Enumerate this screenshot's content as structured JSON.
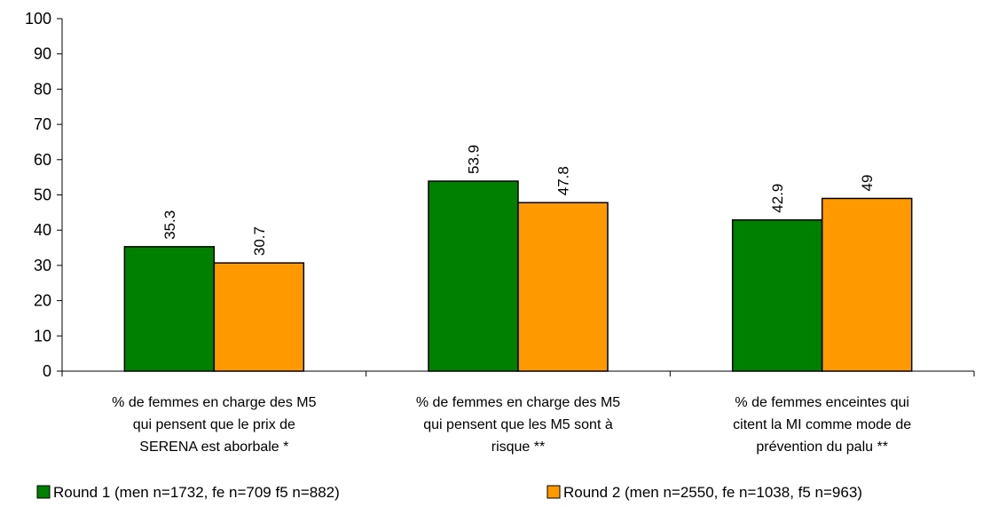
{
  "chart_data": {
    "type": "bar",
    "title": "",
    "xlabel": "",
    "ylabel": "",
    "ylim": [
      0,
      100
    ],
    "yticks": [
      0,
      10,
      20,
      30,
      40,
      50,
      60,
      70,
      80,
      90,
      100
    ],
    "categories": [
      [
        "% de femmes en charge des M5",
        "qui pensent que le prix de",
        "SERENA est aborbale *"
      ],
      [
        "% de femmes en charge des M5",
        "qui pensent que les M5 sont à",
        "risque **"
      ],
      [
        "% de femmes enceintes qui",
        "citent la MI comme mode de",
        "prévention du palu **"
      ]
    ],
    "series": [
      {
        "name": "Round 1 (men n=1732, fe n=709 f5 n=882)",
        "color": "#008000",
        "values": [
          35.3,
          53.9,
          42.9
        ],
        "labels": [
          "35.3",
          "53.9",
          "42.9"
        ]
      },
      {
        "name": "Round 2 (men n=2550, fe n=1038, f5 n=963)",
        "color": "#FF9900",
        "values": [
          30.7,
          47.8,
          49
        ],
        "labels": [
          "30.7",
          "47.8",
          "49"
        ]
      }
    ],
    "grid": false,
    "legend_position": "bottom"
  }
}
